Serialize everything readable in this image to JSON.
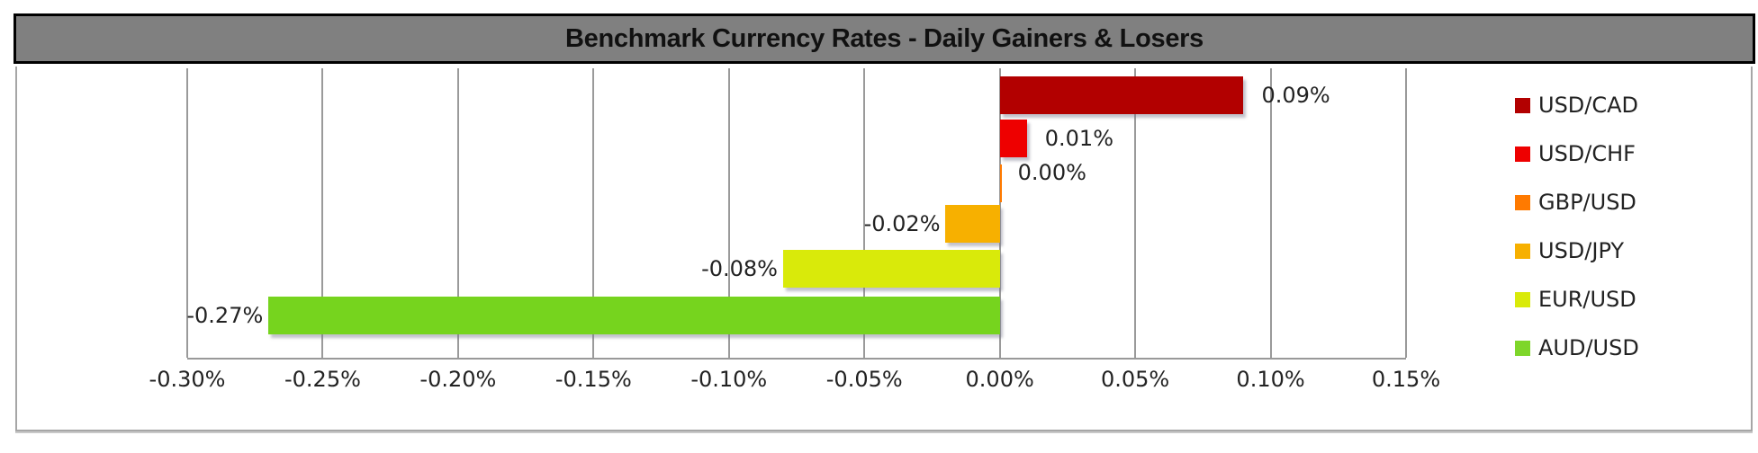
{
  "title": "Benchmark Currency Rates - Daily Gainers & Losers",
  "chart_data": {
    "type": "bar",
    "orientation": "horizontal",
    "title": "Benchmark Currency Rates - Daily Gainers & Losers",
    "xlabel": "",
    "ylabel": "",
    "xlim": [
      -0.3,
      0.15
    ],
    "x_unit": "%",
    "grid": true,
    "legend_position": "right",
    "x_ticks": [
      "-0.30%",
      "-0.25%",
      "-0.20%",
      "-0.15%",
      "-0.10%",
      "-0.05%",
      "0.00%",
      "0.05%",
      "0.10%",
      "0.15%"
    ],
    "categories": [
      "USD/CAD",
      "USD/CHF",
      "GBP/USD",
      "USD/JPY",
      "EUR/USD",
      "AUD/USD"
    ],
    "values": [
      0.09,
      0.01,
      0.0,
      -0.02,
      -0.08,
      -0.27
    ],
    "data_labels": [
      "0.09%",
      "0.01%",
      "0.00%",
      "-0.02%",
      "-0.08%",
      "-0.27%"
    ],
    "colors": [
      "#b20000",
      "#ee0000",
      "#ff7a00",
      "#f7b000",
      "#d9ea0a",
      "#76d41e"
    ]
  },
  "legend": [
    {
      "label": "USD/CAD",
      "color": "#b20000"
    },
    {
      "label": "USD/CHF",
      "color": "#ee0000"
    },
    {
      "label": "GBP/USD",
      "color": "#ff7a00"
    },
    {
      "label": "USD/JPY",
      "color": "#f7b000"
    },
    {
      "label": "EUR/USD",
      "color": "#d9ea0a"
    },
    {
      "label": "AUD/USD",
      "color": "#7ed62a"
    }
  ]
}
